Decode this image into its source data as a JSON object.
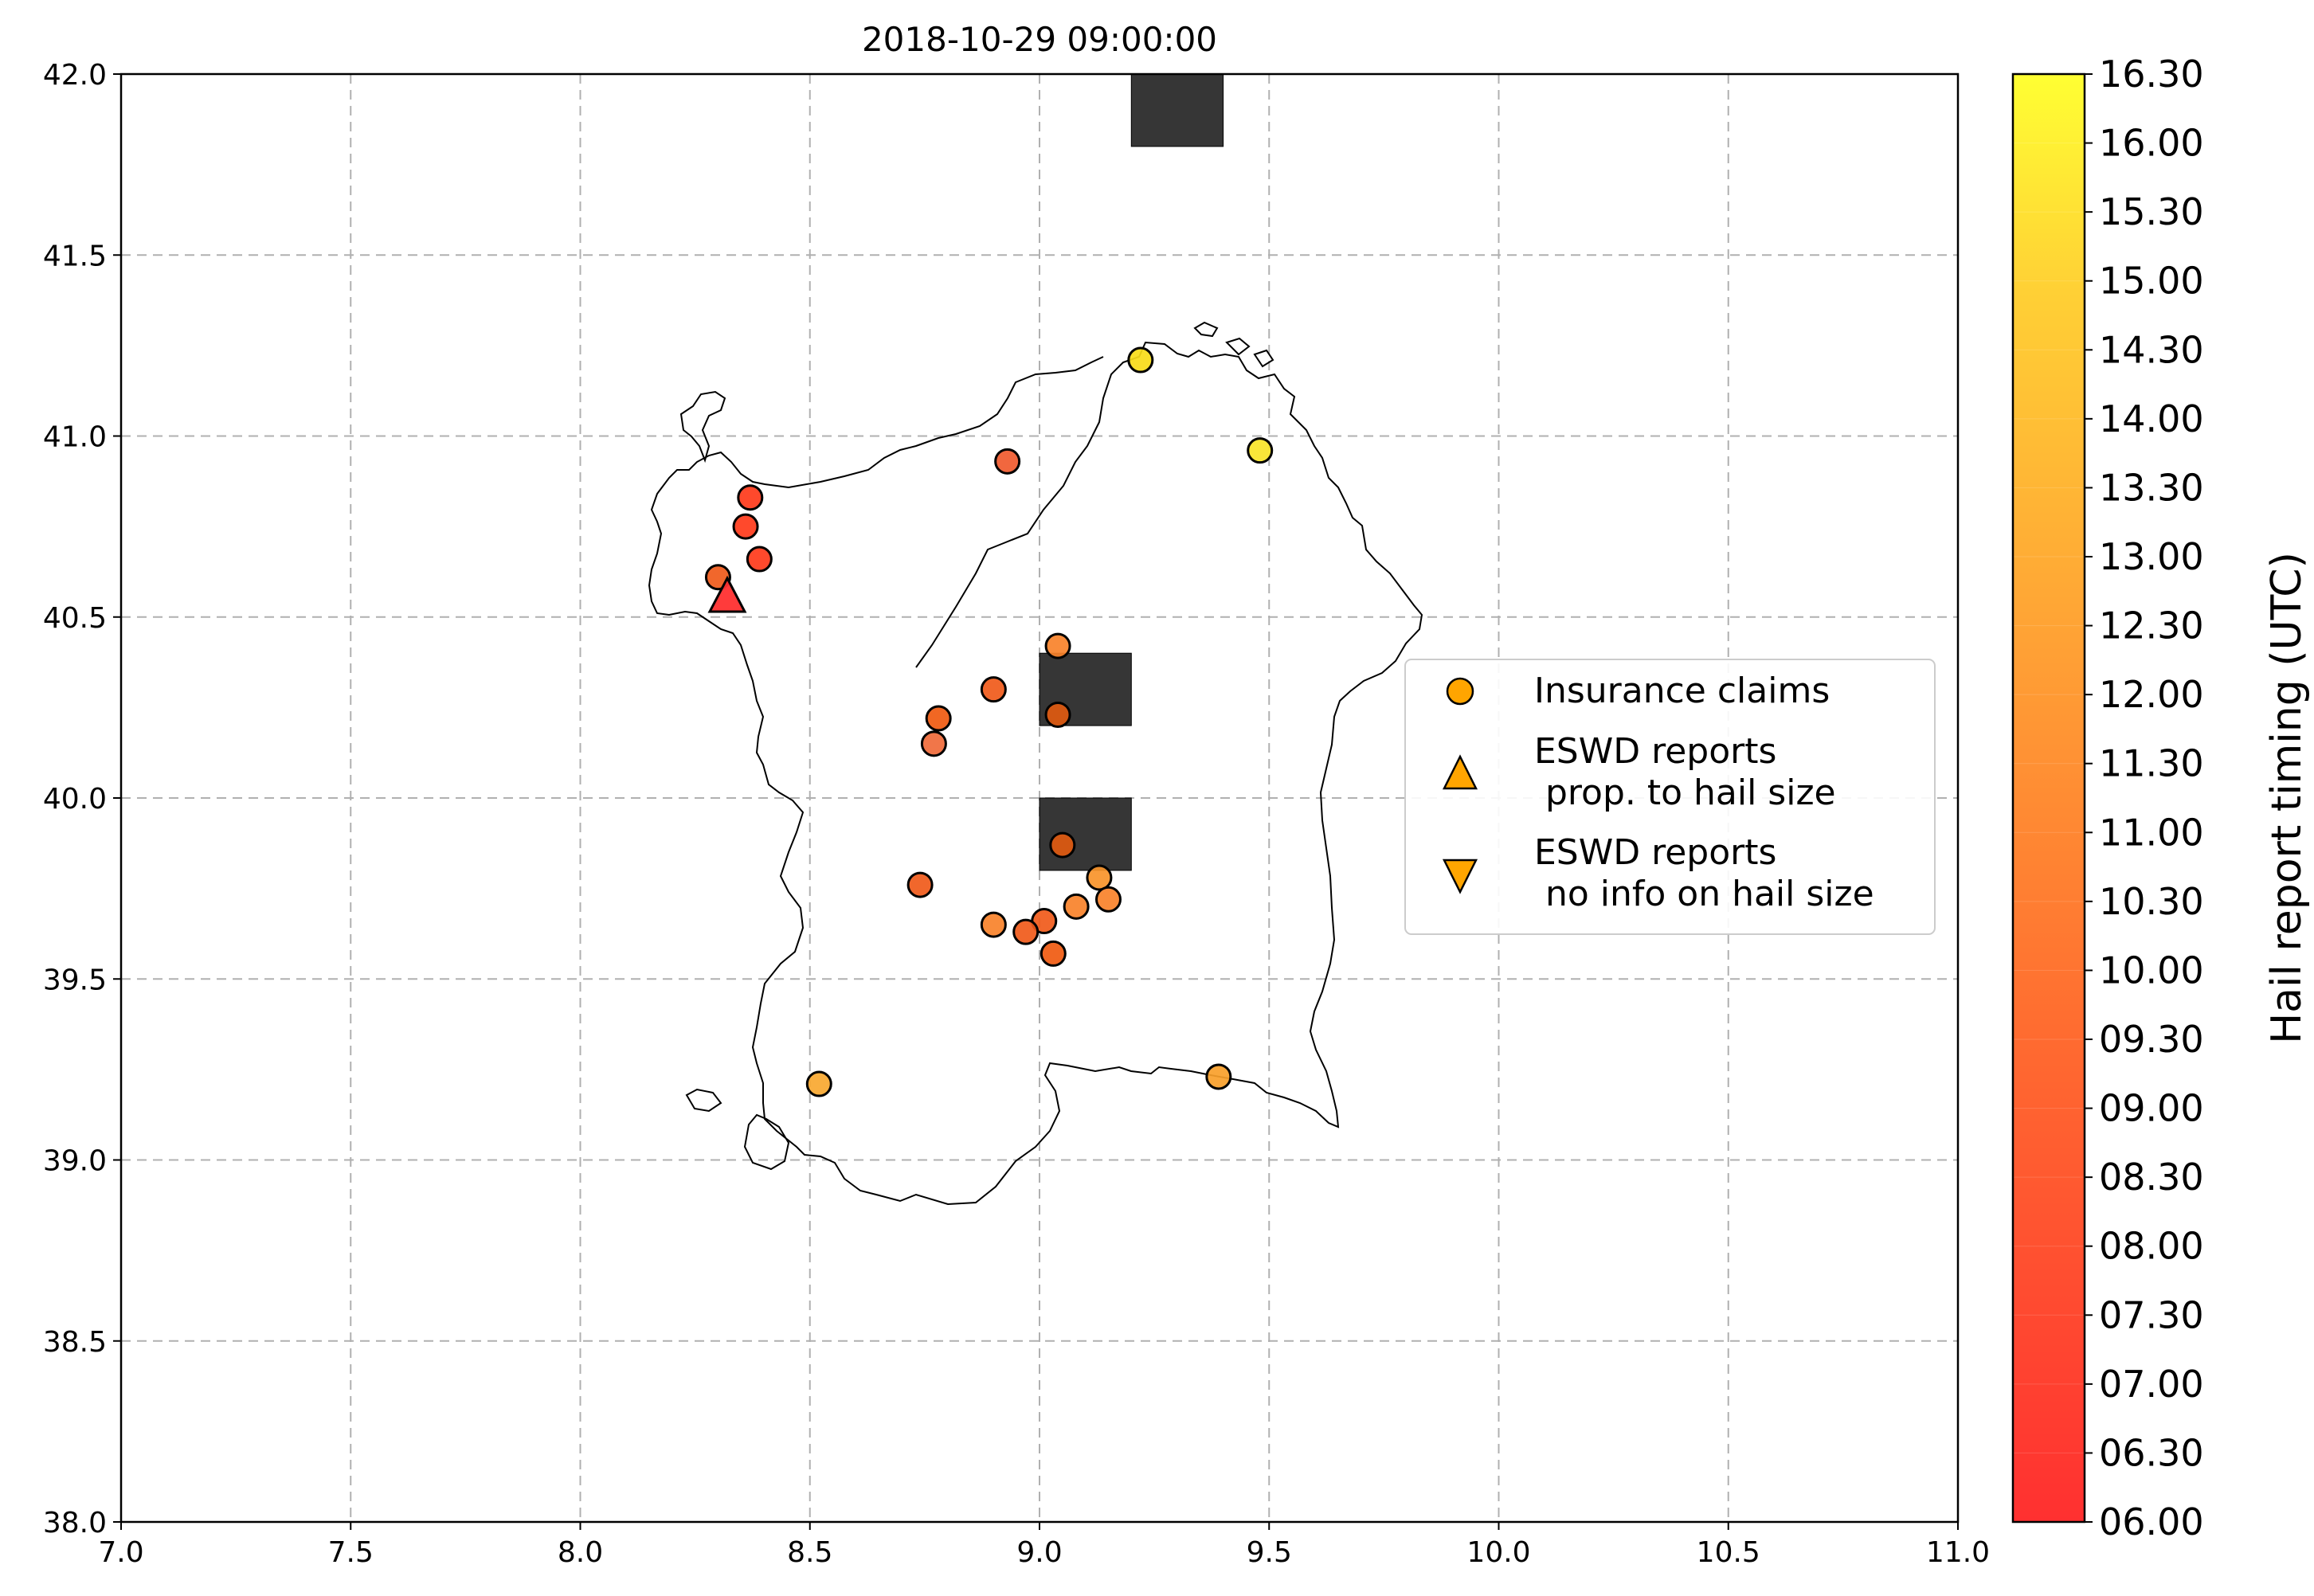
{
  "title": "2018-10-29 09:00:00",
  "x_ticks": [
    "7.0",
    "7.5",
    "8.0",
    "8.5",
    "9.0",
    "9.5",
    "10.0",
    "10.5",
    "11.0"
  ],
  "y_ticks": [
    "38.0",
    "38.5",
    "39.0",
    "39.5",
    "40.0",
    "40.5",
    "41.0",
    "41.5",
    "42.0"
  ],
  "colorbar": {
    "label": "Hail report timing (UTC)",
    "ticks": [
      "06.00",
      "06.30",
      "07.00",
      "07.30",
      "08.00",
      "08.30",
      "09.00",
      "09.30",
      "10.00",
      "10.30",
      "11.00",
      "11.30",
      "12.00",
      "12.30",
      "13.00",
      "13.30",
      "14.00",
      "14.30",
      "15.00",
      "15.30",
      "16.00",
      "16.30"
    ],
    "color_low": "#ff3030",
    "color_high": "#ffff33"
  },
  "legend": {
    "items": [
      {
        "label_lines": [
          "Insurance claims"
        ],
        "marker": "circle"
      },
      {
        "label_lines": [
          "ESWD reports",
          " prop. to hail size"
        ],
        "marker": "triangle-up"
      },
      {
        "label_lines": [
          "ESWD reports",
          " no info on hail size"
        ],
        "marker": "triangle-down"
      }
    ],
    "marker_color": "#ffa500",
    "position": "center-right"
  },
  "chart_data": {
    "type": "scatter",
    "xlim": [
      7.0,
      11.0
    ],
    "ylim": [
      38.0,
      42.0
    ],
    "x_axis": "longitude",
    "y_axis": "latitude",
    "grid": true,
    "insurance_claims": [
      {
        "lon": 9.22,
        "lat": 41.21,
        "color": "#f8dc18"
      },
      {
        "lon": 9.48,
        "lat": 40.96,
        "color": "#f8e428"
      },
      {
        "lon": 8.93,
        "lat": 40.93,
        "color": "#f05a2e"
      },
      {
        "lon": 8.37,
        "lat": 40.83,
        "color": "#ff3a1a"
      },
      {
        "lon": 8.36,
        "lat": 40.75,
        "color": "#ff3a1a"
      },
      {
        "lon": 8.39,
        "lat": 40.66,
        "color": "#ff3a1a"
      },
      {
        "lon": 8.3,
        "lat": 40.61,
        "color": "#f05a1a"
      },
      {
        "lon": 9.04,
        "lat": 40.42,
        "color": "#f8822a"
      },
      {
        "lon": 8.9,
        "lat": 40.3,
        "color": "#f05a1a"
      },
      {
        "lon": 9.04,
        "lat": 40.23,
        "color": "#e05a10"
      },
      {
        "lon": 8.78,
        "lat": 40.22,
        "color": "#f05a10"
      },
      {
        "lon": 8.77,
        "lat": 40.15,
        "color": "#f06a3a"
      },
      {
        "lon": 9.05,
        "lat": 39.87,
        "color": "#e05a10"
      },
      {
        "lon": 9.13,
        "lat": 39.78,
        "color": "#f8942a"
      },
      {
        "lon": 8.74,
        "lat": 39.76,
        "color": "#f05a1a"
      },
      {
        "lon": 9.15,
        "lat": 39.72,
        "color": "#f8822a"
      },
      {
        "lon": 9.08,
        "lat": 39.7,
        "color": "#f8822a"
      },
      {
        "lon": 9.01,
        "lat": 39.66,
        "color": "#f05a1a"
      },
      {
        "lon": 8.9,
        "lat": 39.65,
        "color": "#f8822a"
      },
      {
        "lon": 8.97,
        "lat": 39.63,
        "color": "#f05a1a"
      },
      {
        "lon": 9.03,
        "lat": 39.57,
        "color": "#f05a10"
      },
      {
        "lon": 8.52,
        "lat": 39.21,
        "color": "#f8a830"
      },
      {
        "lon": 9.39,
        "lat": 39.23,
        "color": "#f8a02a"
      }
    ],
    "eswd_reports_prop_to_size": [
      {
        "lon": 8.32,
        "lat": 40.55,
        "color": "#ff3030"
      }
    ],
    "eswd_reports_no_size": [],
    "radar_blocks": [
      {
        "lon_min": 9.2,
        "lon_max": 9.4,
        "lat_min": 41.8,
        "lat_max": 42.0
      },
      {
        "lon_min": 9.0,
        "lon_max": 9.2,
        "lat_min": 40.2,
        "lat_max": 40.4
      },
      {
        "lon_min": 9.0,
        "lon_max": 9.2,
        "lat_min": 39.8,
        "lat_max": 40.0
      }
    ]
  }
}
